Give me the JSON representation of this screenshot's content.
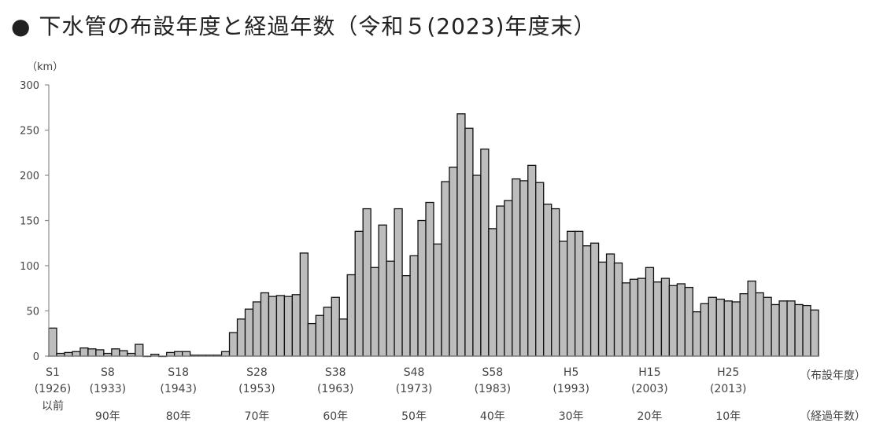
{
  "page_title": "●  下水管の布設年度と経過年数（令和５(2023)年度末）",
  "chart_data": {
    "type": "bar",
    "title": "下水管の布設年度と経過年数（令和５(2023)年度末）",
    "ylabel": "（km）",
    "ylim": [
      0,
      300
    ],
    "yticks": [
      0,
      50,
      100,
      150,
      200,
      250,
      300
    ],
    "grid": false,
    "x_labels": [
      {
        "index": 0,
        "era": "S1",
        "year": "(1926)",
        "extra": "以前"
      },
      {
        "index": 7,
        "era": "S8",
        "year": "(1933)"
      },
      {
        "index": 16,
        "era": "S18",
        "year": "(1943)"
      },
      {
        "index": 26,
        "era": "S28",
        "year": "(1953)"
      },
      {
        "index": 36,
        "era": "S38",
        "year": "(1963)"
      },
      {
        "index": 46,
        "era": "S48",
        "year": "(1973)"
      },
      {
        "index": 56,
        "era": "S58",
        "year": "(1983)"
      },
      {
        "index": 66,
        "era": "H5",
        "year": "(1993)"
      },
      {
        "index": 76,
        "era": "H15",
        "year": "(2003)"
      },
      {
        "index": 86,
        "era": "H25",
        "year": "(2013)"
      }
    ],
    "elapsed_labels": [
      {
        "index": 7,
        "text": "90年"
      },
      {
        "index": 16,
        "text": "80年"
      },
      {
        "index": 26,
        "text": "70年"
      },
      {
        "index": 36,
        "text": "60年"
      },
      {
        "index": 46,
        "text": "50年"
      },
      {
        "index": 56,
        "text": "40年"
      },
      {
        "index": 66,
        "text": "30年"
      },
      {
        "index": 76,
        "text": "20年"
      },
      {
        "index": 86,
        "text": "10年"
      }
    ],
    "row_caption_year": "（布設年度）",
    "row_caption_elapsed": "（経過年数）",
    "values": [
      31,
      3,
      4,
      5,
      9,
      8,
      7,
      3,
      8,
      6,
      3,
      13,
      0,
      2,
      0,
      4,
      5,
      5,
      1,
      1,
      1,
      1,
      5,
      26,
      41,
      52,
      60,
      70,
      66,
      67,
      66,
      68,
      114,
      36,
      45,
      54,
      65,
      41,
      90,
      138,
      163,
      98,
      145,
      105,
      163,
      89,
      111,
      150,
      170,
      124,
      193,
      209,
      268,
      252,
      200,
      229,
      141,
      166,
      172,
      196,
      194,
      211,
      192,
      168,
      163,
      127,
      138,
      138,
      122,
      125,
      104,
      113,
      103,
      81,
      85,
      86,
      98,
      82,
      86,
      78,
      80,
      76,
      49,
      58,
      65,
      63,
      61,
      60,
      69,
      83,
      70,
      65,
      57,
      61,
      61,
      57,
      56,
      51
    ],
    "bar_color": "#bdbdbd"
  }
}
